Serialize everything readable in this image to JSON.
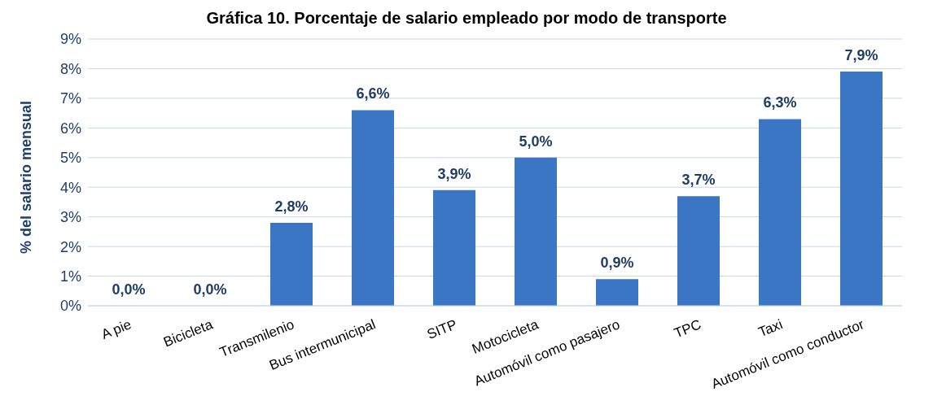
{
  "chart_data": {
    "type": "bar",
    "title": "Gráfica 10. Porcentaje de salario empleado por modo de transporte",
    "ylabel": "% del salario mensual",
    "categories": [
      "A pie",
      "Bicicleta",
      "Transmilenio",
      "Bus intermunicipal",
      "SITP",
      "Motocicleta",
      "Automóvil como pasajero",
      "TPC",
      "Taxi",
      "Automóvil como conductor"
    ],
    "values": [
      0,
      0,
      2.8,
      6.6,
      3.9,
      5.0,
      0.9,
      3.7,
      6.3,
      7.9
    ],
    "value_labels": [
      "0,0%",
      "0,0%",
      "2,8%",
      "6,6%",
      "3,9%",
      "5,0%",
      "0,9%",
      "3,7%",
      "6,3%",
      "7,9%"
    ],
    "color": "#3a76c4",
    "ylim": [
      0,
      9
    ],
    "yticks": [
      {
        "value": 0,
        "label": "0%"
      },
      {
        "value": 1,
        "label": "1%"
      },
      {
        "value": 2,
        "label": "2%"
      },
      {
        "value": 3,
        "label": "3%"
      },
      {
        "value": 4,
        "label": "4%"
      },
      {
        "value": 5,
        "label": "5%"
      },
      {
        "value": 6,
        "label": "6%"
      },
      {
        "value": 7,
        "label": "7%"
      },
      {
        "value": 8,
        "label": "8%"
      },
      {
        "value": 9,
        "label": "9%"
      }
    ],
    "grid": "y",
    "legend": false
  }
}
